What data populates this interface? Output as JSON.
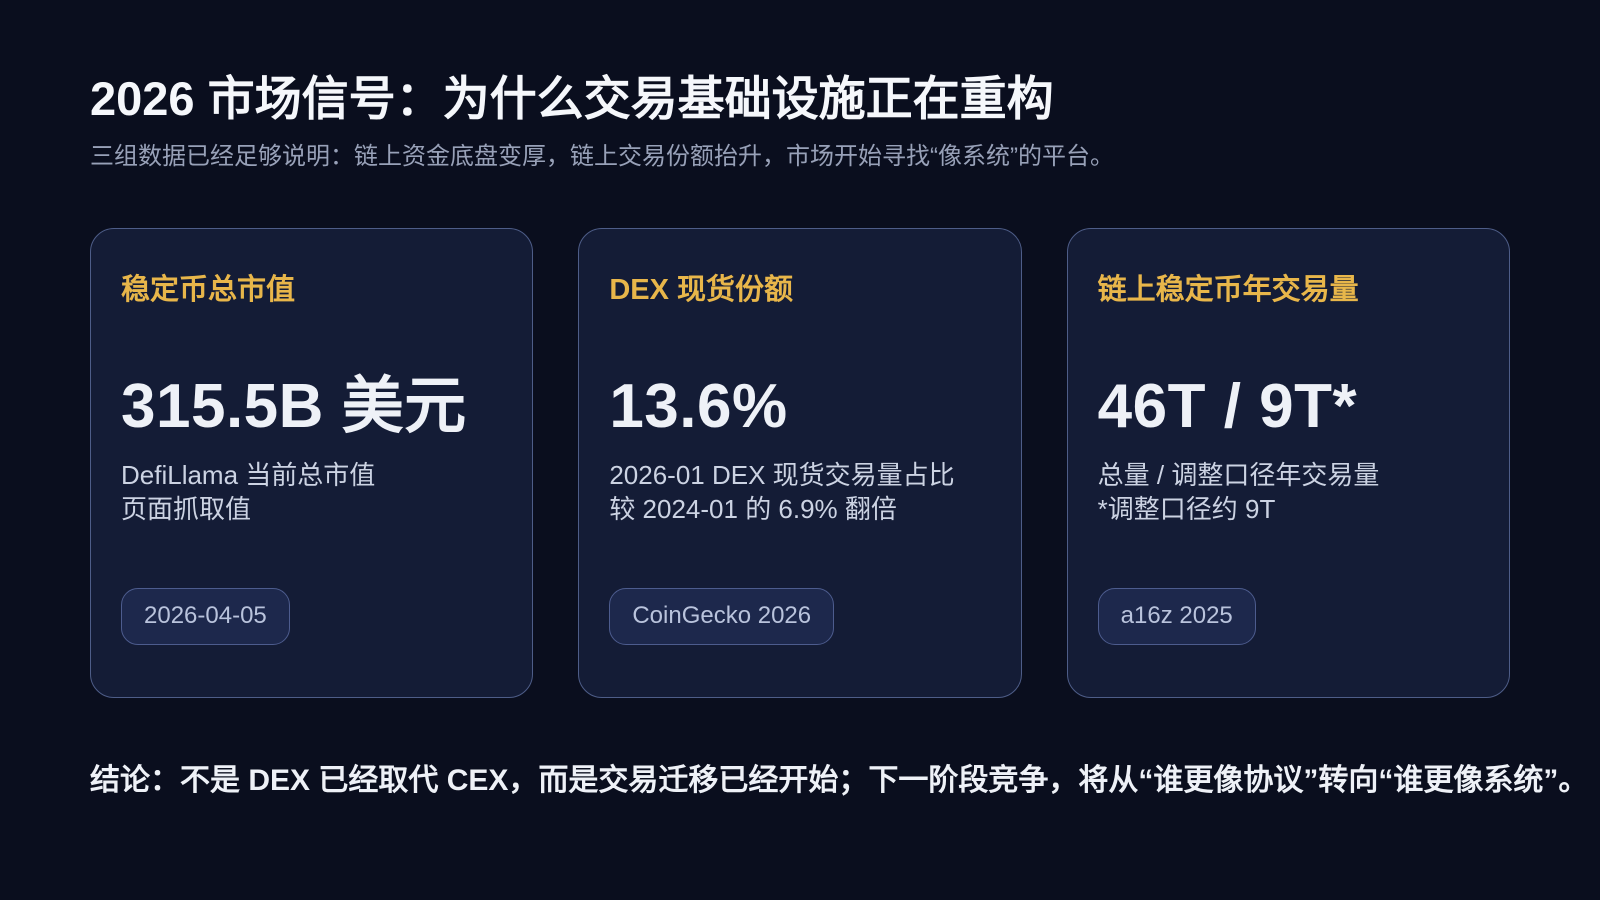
{
  "page": {
    "title": "2026 市场信号：为什么交易基础设施正在重构",
    "subtitle": "三组数据已经足够说明：链上资金底盘变厚，链上交易份额抬升，市场开始寻找“像系统”的平台。",
    "conclusion": "结论：不是 DEX 已经取代 CEX，而是交易迁移已经开始；下一阶段竞争，将从“谁更像协议”转向“谁更像系统”。"
  },
  "colors": {
    "background": "#0a0e1e",
    "card_background": "#141c36",
    "card_border": "#4e5d88",
    "accent_gold": "#e8b64a",
    "value_white": "#eef1f7",
    "body_gray": "#ccd3e3",
    "subtitle_gray": "#98a1b8",
    "badge_background": "#1d284c",
    "badge_border": "#4d5c8e",
    "badge_text": "#b9c3dc",
    "title_white": "#f5f7fb"
  },
  "cards": [
    {
      "label": "稳定币总市值",
      "value": "315.5B 美元",
      "desc_line1": "DefiLlama 当前总市值",
      "desc_line2": "页面抓取值",
      "badge": "2026-04-05"
    },
    {
      "label": "DEX 现货份额",
      "value": "13.6%",
      "desc_line1": "2026-01 DEX 现货交易量占比",
      "desc_line2": "较 2024-01 的 6.9% 翻倍",
      "badge": "CoinGecko 2026"
    },
    {
      "label": "链上稳定币年交易量",
      "value": "46T / 9T*",
      "desc_line1": "总量 / 调整口径年交易量",
      "desc_line2": "*调整口径约 9T",
      "badge": "a16z 2025"
    }
  ]
}
